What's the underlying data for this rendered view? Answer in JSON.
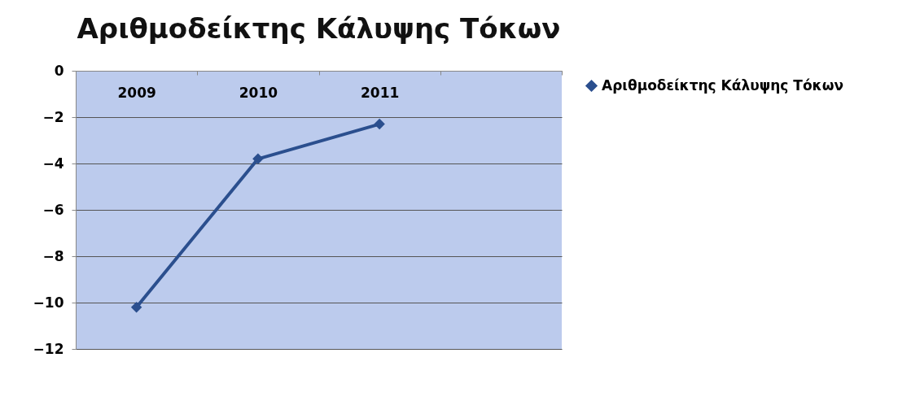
{
  "chart_data": {
    "type": "line",
    "title": "Αριθμοδείκτης Κάλυψης Τόκων",
    "categories": [
      "2009",
      "2010",
      "2011",
      null
    ],
    "series": [
      {
        "name": "Αριθμοδείκτης Κάλυψης Τόκων",
        "color": "#2b4f8e",
        "values": [
          -10.2,
          -3.8,
          -2.3,
          null
        ]
      }
    ],
    "ylim": [
      -12,
      0
    ],
    "yticks": [
      -12,
      -10,
      -8,
      -6,
      -4,
      -2,
      0
    ],
    "grid": "y",
    "legend": "right",
    "marker": "diamond"
  }
}
